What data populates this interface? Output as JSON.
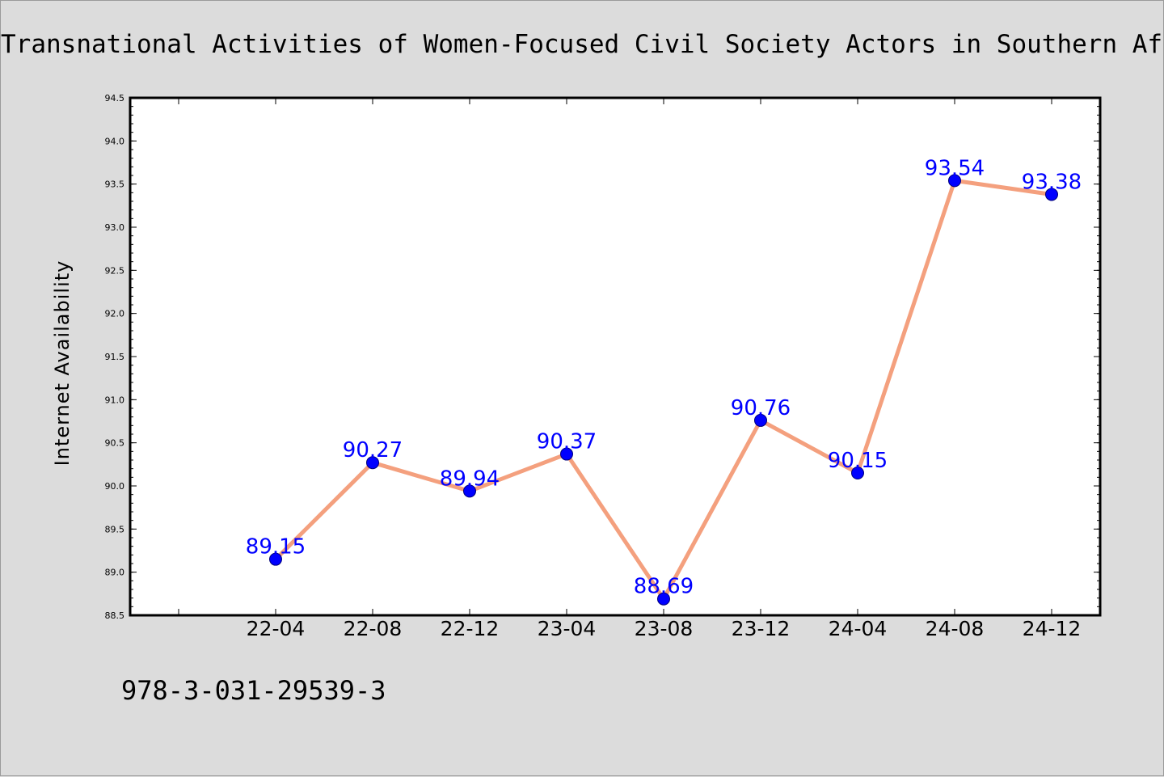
{
  "chart_data": {
    "type": "line",
    "title": "Transnational Activities of Women-Focused Civil Society Actors in Southern Afric",
    "xlabel": "",
    "ylabel": "Internet Availability",
    "categories": [
      "22-04",
      "22-08",
      "22-12",
      "23-04",
      "23-08",
      "23-12",
      "24-04",
      "24-08",
      "24-12"
    ],
    "series": [
      {
        "values": [
          89.15,
          90.27,
          89.94,
          90.37,
          88.69,
          90.76,
          90.15,
          93.54,
          93.38
        ],
        "data_labels": [
          "89.15",
          "90.27",
          "89.94",
          "90.37",
          "88.69",
          "90.76",
          "90.15",
          "93.54",
          "93.38"
        ]
      }
    ],
    "yticks": [
      "88.5",
      "89.0",
      "89.5",
      "90.0",
      "90.5",
      "91.0",
      "91.5",
      "92.0",
      "92.5",
      "93.0",
      "93.5",
      "94.0",
      "94.5"
    ],
    "ylim": [
      88.5,
      94.5
    ],
    "grid": false,
    "line_color": "#f4a07e",
    "marker_color": "#0000ff",
    "label_color": "#0000ff",
    "background_color": "#dcdcdc",
    "plot_background": "#ffffff"
  },
  "footer": {
    "isbn": "978-3-031-29539-3"
  }
}
